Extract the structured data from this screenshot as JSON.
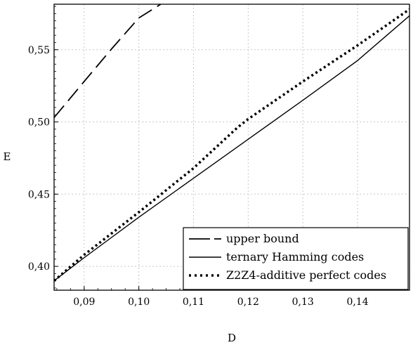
{
  "chart_data": {
    "type": "line",
    "xlabel": "D",
    "ylabel": "E",
    "xlim": [
      0.0845,
      0.1495
    ],
    "ylim": [
      0.3835,
      0.5815
    ],
    "grid": true,
    "legend_position": "bottom-right",
    "x_ticks": [
      0.09,
      0.1,
      0.11,
      0.12,
      0.13,
      0.14
    ],
    "x_tick_labels": [
      "0,09",
      "0,10",
      "0,11",
      "0,12",
      "0,13",
      "0,14"
    ],
    "y_ticks": [
      0.4,
      0.45,
      0.5,
      0.55
    ],
    "y_tick_labels": [
      "0,40",
      "0,45",
      "0,50",
      "0,55"
    ],
    "series": [
      {
        "name": "upper bound",
        "style": "dashed",
        "color": "#000000",
        "x": [
          0.0845,
          0.09,
          0.095,
          0.1,
          0.104
        ],
        "y": [
          0.503,
          0.528,
          0.5505,
          0.572,
          0.5815
        ]
      },
      {
        "name": "ternary Hamming codes",
        "style": "solid",
        "color": "#000000",
        "x": [
          0.0845,
          0.09,
          0.1,
          0.11,
          0.12,
          0.13,
          0.14,
          0.1495
        ],
        "y": [
          0.39,
          0.406,
          0.434,
          0.461,
          0.488,
          0.515,
          0.5425,
          0.5735
        ]
      },
      {
        "name": "Z2Z4-additive perfect codes",
        "style": "dotted",
        "color": "#000000",
        "x": [
          0.0845,
          0.09,
          0.1,
          0.11,
          0.118,
          0.12,
          0.13,
          0.14,
          0.1495
        ],
        "y": [
          0.39,
          0.408,
          0.4375,
          0.468,
          0.496,
          0.502,
          0.528,
          0.553,
          0.578
        ]
      }
    ]
  }
}
